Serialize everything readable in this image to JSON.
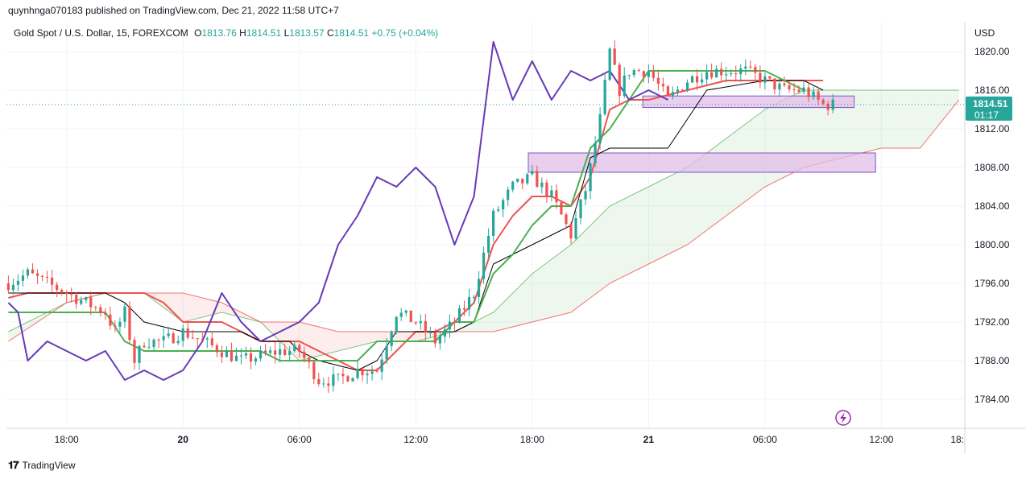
{
  "publish_line": "quynhnga070183 published on TradingView.com, Dec 21, 2022 11:58 UTC+7",
  "header": {
    "symbol": "Gold Spot / U.S. Dollar, 15, FOREXCOM",
    "o_label": "O",
    "o": "1813.76",
    "h_label": "H",
    "h": "1814.51",
    "l_label": "L",
    "l": "1813.57",
    "c_label": "C",
    "c": "1814.51",
    "change": "+0.75 (+0.04%)"
  },
  "price_tag": {
    "price": "1814.51",
    "countdown": "01:17"
  },
  "footer": {
    "logo": "𝟏𝟕",
    "brand": "TradingView"
  },
  "colors": {
    "up": "#26a69a",
    "down": "#ef5350",
    "purple": "#673ab7",
    "tenkan": "#ef5350",
    "kijun": "#000000",
    "chikou": "#673ab7",
    "span_a": "#4caf50",
    "span_b": "#ef5350",
    "lagging_green": "#43a047",
    "zone_fill": "#e1bee7",
    "zone_border": "#7e57c2"
  },
  "chart_data": {
    "type": "candlestick",
    "currency_label": "USD",
    "y_ticks": [
      1784,
      1788,
      1792,
      1796,
      1800,
      1804,
      1808,
      1812,
      1816,
      1820
    ],
    "y_tick_labels": [
      "1784.00",
      "1788.00",
      "1792.00",
      "1796.00",
      "1800.00",
      "1804.00",
      "1808.00",
      "1812.00",
      "1816.00",
      "1820.00"
    ],
    "ylim": [
      1781,
      1823
    ],
    "x_tick_labels": [
      "18:00",
      "20",
      "06:00",
      "12:00",
      "18:00",
      "21",
      "06:00",
      "12:00",
      "18:"
    ],
    "x_tick_times_hours": [
      18,
      24,
      30,
      36,
      42,
      48,
      54,
      60,
      66
    ],
    "xlim_hours": [
      14.9,
      64.3
    ],
    "last_price": 1814.51,
    "candle_anchors": [
      [
        15.0,
        1796
      ],
      [
        16.0,
        1797
      ],
      [
        17.0,
        1796
      ],
      [
        18.0,
        1795
      ],
      [
        19.0,
        1794
      ],
      [
        20.0,
        1793
      ],
      [
        20.5,
        1791
      ],
      [
        21.0,
        1793
      ],
      [
        21.5,
        1788
      ],
      [
        22.0,
        1790
      ],
      [
        23.0,
        1790
      ],
      [
        24.0,
        1791
      ],
      [
        25.0,
        1790
      ],
      [
        26.0,
        1789
      ],
      [
        27.0,
        1788
      ],
      [
        28.0,
        1788.5
      ],
      [
        29.0,
        1789
      ],
      [
        30.0,
        1789
      ],
      [
        31.0,
        1786
      ],
      [
        32.0,
        1786
      ],
      [
        33.0,
        1787
      ],
      [
        34.0,
        1787
      ],
      [
        35.0,
        1793
      ],
      [
        36.0,
        1792
      ],
      [
        37.0,
        1790
      ],
      [
        38.0,
        1792
      ],
      [
        39.0,
        1795
      ],
      [
        40.0,
        1803
      ],
      [
        41.0,
        1806
      ],
      [
        42.0,
        1807
      ],
      [
        43.0,
        1805
      ],
      [
        44.0,
        1801
      ],
      [
        44.8,
        1806
      ],
      [
        45.5,
        1813
      ],
      [
        46.0,
        1820
      ],
      [
        46.5,
        1816
      ],
      [
        47.0,
        1818
      ],
      [
        48.0,
        1818
      ],
      [
        49.0,
        1815
      ],
      [
        50.0,
        1817
      ],
      [
        51.0,
        1818
      ],
      [
        52.0,
        1818
      ],
      [
        53.0,
        1818
      ],
      [
        54.0,
        1817
      ],
      [
        55.0,
        1816
      ],
      [
        56.0,
        1816
      ],
      [
        57.0,
        1814.5
      ],
      [
        57.6,
        1814.5
      ]
    ],
    "series": [
      {
        "name": "",
        "color": "#ef5350",
        "kind": "tenkan",
        "points": [
          [
            15,
            1794.5
          ],
          [
            16,
            1795
          ],
          [
            18,
            1795
          ],
          [
            20,
            1795
          ],
          [
            22,
            1795
          ],
          [
            23,
            1794
          ],
          [
            24,
            1792
          ],
          [
            26,
            1792
          ],
          [
            27,
            1791
          ],
          [
            28,
            1790
          ],
          [
            30,
            1790
          ],
          [
            31,
            1789
          ],
          [
            33,
            1787
          ],
          [
            34,
            1787
          ],
          [
            35,
            1789
          ],
          [
            36,
            1791
          ],
          [
            37,
            1791
          ],
          [
            38,
            1792
          ],
          [
            39,
            1794
          ],
          [
            40,
            1800
          ],
          [
            41,
            1803
          ],
          [
            42,
            1805
          ],
          [
            43,
            1805
          ],
          [
            44,
            1804
          ],
          [
            45,
            1807
          ],
          [
            46,
            1814
          ],
          [
            47,
            1815
          ],
          [
            48,
            1815
          ],
          [
            50,
            1816
          ],
          [
            52,
            1817
          ],
          [
            54,
            1817
          ],
          [
            55,
            1817
          ],
          [
            57,
            1817
          ]
        ]
      },
      {
        "name": "",
        "color": "#000000",
        "kind": "kijun",
        "points": [
          [
            15,
            1795
          ],
          [
            18,
            1795
          ],
          [
            20,
            1795
          ],
          [
            21,
            1794
          ],
          [
            22,
            1792
          ],
          [
            24,
            1791
          ],
          [
            26,
            1791
          ],
          [
            27,
            1791
          ],
          [
            28,
            1790
          ],
          [
            29.5,
            1790
          ],
          [
            30,
            1789
          ],
          [
            31,
            1788
          ],
          [
            33,
            1787
          ],
          [
            34,
            1788
          ],
          [
            35,
            1791
          ],
          [
            38,
            1791
          ],
          [
            39,
            1792
          ],
          [
            40,
            1798
          ],
          [
            41,
            1799
          ],
          [
            42,
            1800
          ],
          [
            43,
            1801
          ],
          [
            44,
            1802
          ],
          [
            45,
            1809
          ],
          [
            46,
            1810
          ],
          [
            49,
            1810
          ],
          [
            50,
            1813
          ],
          [
            51,
            1816
          ],
          [
            54,
            1817
          ],
          [
            56,
            1817
          ],
          [
            57,
            1816
          ]
        ]
      },
      {
        "name": "",
        "color": "#4caf50",
        "kind": "span_a_green_lead",
        "points": [
          [
            15,
            1793
          ],
          [
            18,
            1793
          ],
          [
            20,
            1793
          ],
          [
            21,
            1790
          ],
          [
            22,
            1789
          ],
          [
            24,
            1789
          ],
          [
            27,
            1789
          ],
          [
            28,
            1789
          ],
          [
            29,
            1788
          ],
          [
            31,
            1788
          ],
          [
            33,
            1788
          ],
          [
            34,
            1790
          ],
          [
            36,
            1790
          ],
          [
            37,
            1790
          ],
          [
            38,
            1792
          ],
          [
            39,
            1792
          ],
          [
            40,
            1797
          ],
          [
            41,
            1799
          ],
          [
            42,
            1802
          ],
          [
            43,
            1804
          ],
          [
            44,
            1804
          ],
          [
            45,
            1810
          ],
          [
            46,
            1812
          ],
          [
            48,
            1818
          ],
          [
            50,
            1818
          ],
          [
            52,
            1818
          ],
          [
            54,
            1818
          ],
          [
            55,
            1817
          ],
          [
            56,
            1816
          ]
        ]
      },
      {
        "name": "",
        "color": "#673ab7",
        "kind": "chikou",
        "points": [
          [
            15,
            1794
          ],
          [
            15.5,
            1793
          ],
          [
            16,
            1788
          ],
          [
            17,
            1790
          ],
          [
            18,
            1789
          ],
          [
            19,
            1788
          ],
          [
            20,
            1789
          ],
          [
            21,
            1786
          ],
          [
            22,
            1787
          ],
          [
            23,
            1786
          ],
          [
            24,
            1787
          ],
          [
            25,
            1790
          ],
          [
            26,
            1795
          ],
          [
            27,
            1792
          ],
          [
            28,
            1790
          ],
          [
            29,
            1791
          ],
          [
            30,
            1792
          ],
          [
            31,
            1794
          ],
          [
            32,
            1800
          ],
          [
            33,
            1803
          ],
          [
            34,
            1807
          ],
          [
            35,
            1806
          ],
          [
            36,
            1808
          ],
          [
            37,
            1806
          ],
          [
            38,
            1800
          ],
          [
            39,
            1805
          ],
          [
            40,
            1821
          ],
          [
            41,
            1815
          ],
          [
            42,
            1819
          ],
          [
            43,
            1815
          ],
          [
            44,
            1818
          ],
          [
            45,
            1817
          ],
          [
            46,
            1818
          ],
          [
            47,
            1815
          ],
          [
            48,
            1816
          ],
          [
            49,
            1815
          ]
        ]
      }
    ],
    "ichimoku_cloud": {
      "span_a": [
        [
          15,
          1791
        ],
        [
          18,
          1794
        ],
        [
          20,
          1795
        ],
        [
          22,
          1795
        ],
        [
          24,
          1792
        ],
        [
          26,
          1793
        ],
        [
          28,
          1792
        ],
        [
          30,
          1788
        ],
        [
          32,
          1789
        ],
        [
          34,
          1790
        ],
        [
          36,
          1790
        ],
        [
          38,
          1791
        ],
        [
          40,
          1793
        ],
        [
          42,
          1797
        ],
        [
          44,
          1800
        ],
        [
          46,
          1804
        ],
        [
          48,
          1806
        ],
        [
          50,
          1808
        ],
        [
          52,
          1811
        ],
        [
          54,
          1814
        ],
        [
          56,
          1816
        ],
        [
          58,
          1816
        ],
        [
          60,
          1816
        ],
        [
          62,
          1816
        ],
        [
          64,
          1816
        ]
      ],
      "span_b": [
        [
          15,
          1790
        ],
        [
          18,
          1794
        ],
        [
          20,
          1795
        ],
        [
          22,
          1795
        ],
        [
          24,
          1795
        ],
        [
          26,
          1794
        ],
        [
          28,
          1792
        ],
        [
          30,
          1792
        ],
        [
          32,
          1791
        ],
        [
          34,
          1791
        ],
        [
          36,
          1791
        ],
        [
          38,
          1791
        ],
        [
          40,
          1791
        ],
        [
          42,
          1792
        ],
        [
          44,
          1793
        ],
        [
          46,
          1796
        ],
        [
          48,
          1798
        ],
        [
          50,
          1800
        ],
        [
          52,
          1803
        ],
        [
          54,
          1806
        ],
        [
          56,
          1808
        ],
        [
          58,
          1809
        ],
        [
          60,
          1810
        ],
        [
          62,
          1810
        ],
        [
          64,
          1815
        ]
      ]
    },
    "zones": [
      {
        "x0": 41.8,
        "x1": 59.7,
        "y0": 1807.5,
        "y1": 1809.5
      },
      {
        "x0": 47.7,
        "x1": 58.6,
        "y0": 1814.2,
        "y1": 1815.4
      }
    ]
  }
}
